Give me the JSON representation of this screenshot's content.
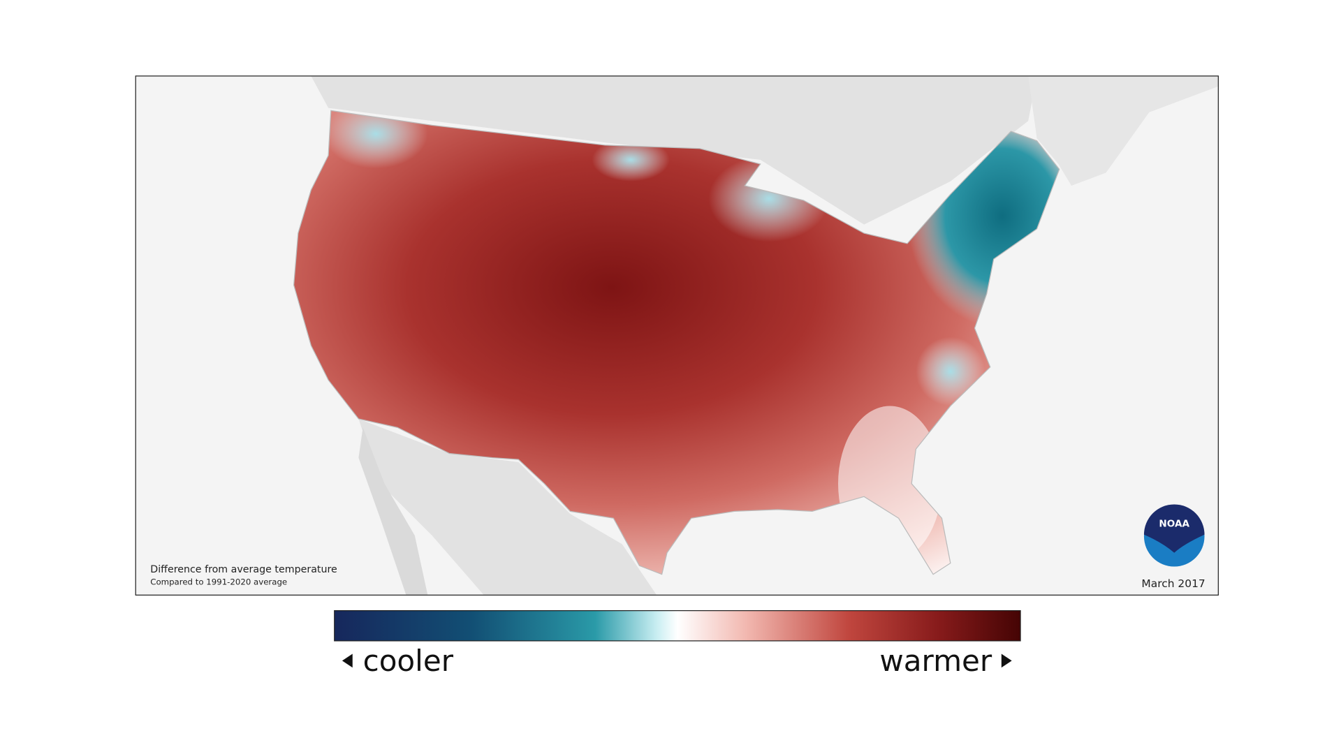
{
  "map": {
    "caption": {
      "title": "Difference from average temperature",
      "subtitle": "Compared to 1991-2020 average"
    },
    "date": "March 2017",
    "logo": "NOAA"
  },
  "legend": {
    "low": "cooler",
    "high": "warmer"
  }
}
